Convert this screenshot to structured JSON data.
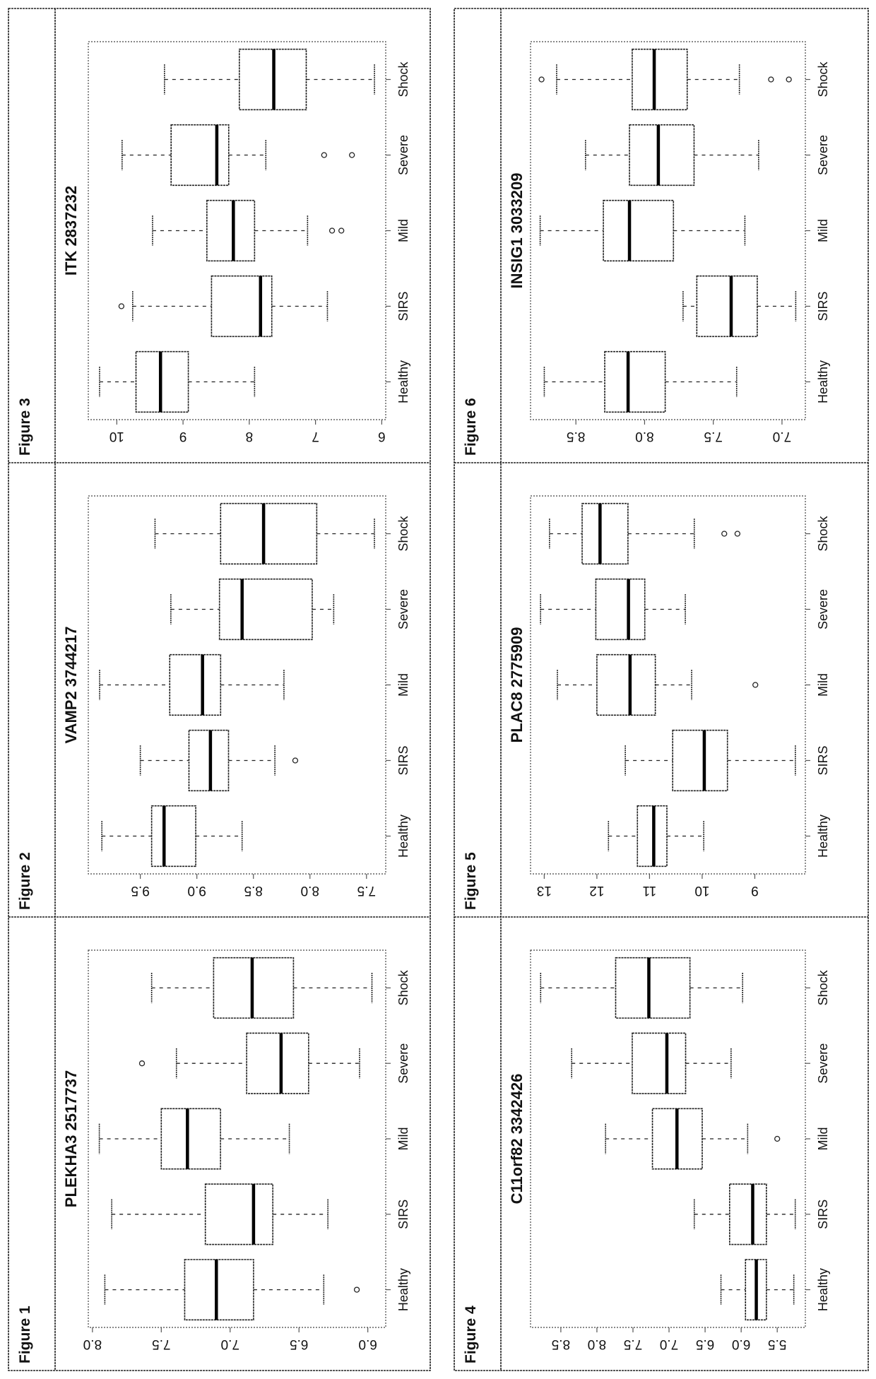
{
  "chart_data": [
    {
      "type": "box",
      "figure_label": "Figure 1",
      "title": "PLEKHA3 2517737",
      "categories": [
        "Healthy",
        "SIRS",
        "Mild",
        "Severe",
        "Shock"
      ],
      "ylim": [
        5.87,
        8.03
      ],
      "yticks": [
        6.0,
        6.5,
        7.0,
        7.5,
        8.0
      ],
      "ytick_labels": [
        "6.0",
        "6.5",
        "7.0",
        "7.5",
        "8.0"
      ],
      "boxes": [
        {
          "whisker_low": 6.32,
          "q1": 6.83,
          "median": 7.1,
          "q3": 7.33,
          "whisker_high": 7.91,
          "outliers": [
            6.08
          ]
        },
        {
          "whisker_low": 6.29,
          "q1": 6.69,
          "median": 6.83,
          "q3": 7.18,
          "whisker_high": 7.86,
          "outliers": []
        },
        {
          "whisker_low": 6.57,
          "q1": 7.07,
          "median": 7.31,
          "q3": 7.5,
          "whisker_high": 7.95,
          "outliers": []
        },
        {
          "whisker_low": 6.06,
          "q1": 6.43,
          "median": 6.63,
          "q3": 6.88,
          "whisker_high": 7.39,
          "outliers": [
            7.64
          ]
        },
        {
          "whisker_low": 5.97,
          "q1": 6.54,
          "median": 6.84,
          "q3": 7.12,
          "whisker_high": 7.57,
          "outliers": []
        }
      ]
    },
    {
      "type": "box",
      "figure_label": "Figure 2",
      "title": "VAMP2 3744217",
      "categories": [
        "Healthy",
        "SIRS",
        "Mild",
        "Severe",
        "Shock"
      ],
      "ylim": [
        7.33,
        9.96
      ],
      "yticks": [
        7.5,
        8.0,
        8.5,
        9.0,
        9.5
      ],
      "ytick_labels": [
        "7.5",
        "8.0",
        "8.5",
        "9.0",
        "9.5"
      ],
      "boxes": [
        {
          "whisker_low": 8.6,
          "q1": 9.01,
          "median": 9.29,
          "q3": 9.4,
          "whisker_high": 9.84,
          "outliers": []
        },
        {
          "whisker_low": 8.31,
          "q1": 8.72,
          "median": 8.88,
          "q3": 9.07,
          "whisker_high": 9.5,
          "outliers": [
            8.13
          ]
        },
        {
          "whisker_low": 8.23,
          "q1": 8.79,
          "median": 8.95,
          "q3": 9.24,
          "whisker_high": 9.86,
          "outliers": []
        },
        {
          "whisker_low": 7.79,
          "q1": 7.98,
          "median": 8.6,
          "q3": 8.8,
          "whisker_high": 9.23,
          "outliers": []
        },
        {
          "whisker_low": 7.43,
          "q1": 7.94,
          "median": 8.41,
          "q3": 8.79,
          "whisker_high": 9.37,
          "outliers": []
        }
      ]
    },
    {
      "type": "box",
      "figure_label": "Figure 3",
      "title": "ITK 2837232",
      "categories": [
        "Healthy",
        "SIRS",
        "Mild",
        "Severe",
        "Shock"
      ],
      "ylim": [
        5.94,
        10.43
      ],
      "yticks": [
        6,
        7,
        8,
        9,
        10
      ],
      "ytick_labels": [
        "6",
        "7",
        "8",
        "9",
        "10"
      ],
      "boxes": [
        {
          "whisker_low": 7.92,
          "q1": 8.92,
          "median": 9.34,
          "q3": 9.71,
          "whisker_high": 10.26,
          "outliers": []
        },
        {
          "whisker_low": 6.82,
          "q1": 7.66,
          "median": 7.83,
          "q3": 8.57,
          "whisker_high": 9.76,
          "outliers": [
            9.93
          ]
        },
        {
          "whisker_low": 7.12,
          "q1": 7.92,
          "median": 8.24,
          "q3": 8.64,
          "whisker_high": 9.46,
          "outliers": [
            6.75,
            6.61
          ]
        },
        {
          "whisker_low": 7.75,
          "q1": 8.31,
          "median": 8.49,
          "q3": 9.18,
          "whisker_high": 9.92,
          "outliers": [
            6.87,
            6.45
          ]
        },
        {
          "whisker_low": 6.11,
          "q1": 7.14,
          "median": 7.63,
          "q3": 8.15,
          "whisker_high": 9.28,
          "outliers": []
        }
      ]
    },
    {
      "type": "box",
      "figure_label": "Figure 4",
      "title": "C11orf82 3342426",
      "categories": [
        "Healthy",
        "SIRS",
        "Mild",
        "Severe",
        "Shock"
      ],
      "ylim": [
        5.11,
        8.92
      ],
      "yticks": [
        5.5,
        6.0,
        6.5,
        7.0,
        7.5,
        8.0,
        8.5
      ],
      "ytick_labels": [
        "5.5",
        "6.0",
        "6.5",
        "7.0",
        "7.5",
        "8.0",
        "8.5"
      ],
      "boxes": [
        {
          "whisker_low": 5.27,
          "q1": 5.65,
          "median": 5.79,
          "q3": 5.94,
          "whisker_high": 6.28,
          "outliers": []
        },
        {
          "whisker_low": 5.25,
          "q1": 5.65,
          "median": 5.84,
          "q3": 6.16,
          "whisker_high": 6.65,
          "outliers": []
        },
        {
          "whisker_low": 5.91,
          "q1": 6.54,
          "median": 6.89,
          "q3": 7.23,
          "whisker_high": 7.88,
          "outliers": [
            5.5
          ]
        },
        {
          "whisker_low": 6.14,
          "q1": 6.77,
          "median": 7.03,
          "q3": 7.51,
          "whisker_high": 8.35,
          "outliers": []
        },
        {
          "whisker_low": 5.98,
          "q1": 6.71,
          "median": 7.28,
          "q3": 7.74,
          "whisker_high": 8.78,
          "outliers": []
        }
      ]
    },
    {
      "type": "box",
      "figure_label": "Figure 5",
      "title": "PLAC8 2775909",
      "categories": [
        "Healthy",
        "SIRS",
        "Mild",
        "Severe",
        "Shock"
      ],
      "ylim": [
        8.04,
        13.26
      ],
      "yticks": [
        9,
        10,
        11,
        12,
        13
      ],
      "ytick_labels": [
        "9",
        "10",
        "11",
        "12",
        "13"
      ],
      "boxes": [
        {
          "whisker_low": 9.97,
          "q1": 10.67,
          "median": 10.92,
          "q3": 11.23,
          "whisker_high": 11.78,
          "outliers": []
        },
        {
          "whisker_low": 8.23,
          "q1": 9.52,
          "median": 9.96,
          "q3": 10.56,
          "whisker_high": 11.46,
          "outliers": []
        },
        {
          "whisker_low": 10.2,
          "q1": 10.89,
          "median": 11.37,
          "q3": 12.0,
          "whisker_high": 12.75,
          "outliers": [
            8.99
          ]
        },
        {
          "whisker_low": 10.32,
          "q1": 11.09,
          "median": 11.4,
          "q3": 12.02,
          "whisker_high": 13.07,
          "outliers": []
        },
        {
          "whisker_low": 10.15,
          "q1": 11.41,
          "median": 11.94,
          "q3": 12.28,
          "whisker_high": 12.9,
          "outliers": [
            9.58,
            9.33
          ]
        }
      ]
    },
    {
      "type": "box",
      "figure_label": "Figure 6",
      "title": "INSIG1 3033209",
      "categories": [
        "Healthy",
        "SIRS",
        "Mild",
        "Severe",
        "Shock"
      ],
      "ylim": [
        6.83,
        8.83
      ],
      "yticks": [
        7.0,
        7.5,
        8.0,
        8.5
      ],
      "ytick_labels": [
        "7.0",
        "7.5",
        "8.0",
        "8.5"
      ],
      "boxes": [
        {
          "whisker_low": 7.33,
          "q1": 7.85,
          "median": 8.12,
          "q3": 8.29,
          "whisker_high": 8.73,
          "outliers": []
        },
        {
          "whisker_low": 6.9,
          "q1": 7.18,
          "median": 7.37,
          "q3": 7.62,
          "whisker_high": 7.72,
          "outliers": []
        },
        {
          "whisker_low": 7.27,
          "q1": 7.79,
          "median": 8.11,
          "q3": 8.3,
          "whisker_high": 8.76,
          "outliers": []
        },
        {
          "whisker_low": 7.17,
          "q1": 7.64,
          "median": 7.9,
          "q3": 8.11,
          "whisker_high": 8.43,
          "outliers": []
        },
        {
          "whisker_low": 7.31,
          "q1": 7.69,
          "median": 7.93,
          "q3": 8.09,
          "whisker_high": 8.64,
          "outliers": [
            8.75,
            7.08,
            6.95
          ]
        }
      ]
    }
  ]
}
